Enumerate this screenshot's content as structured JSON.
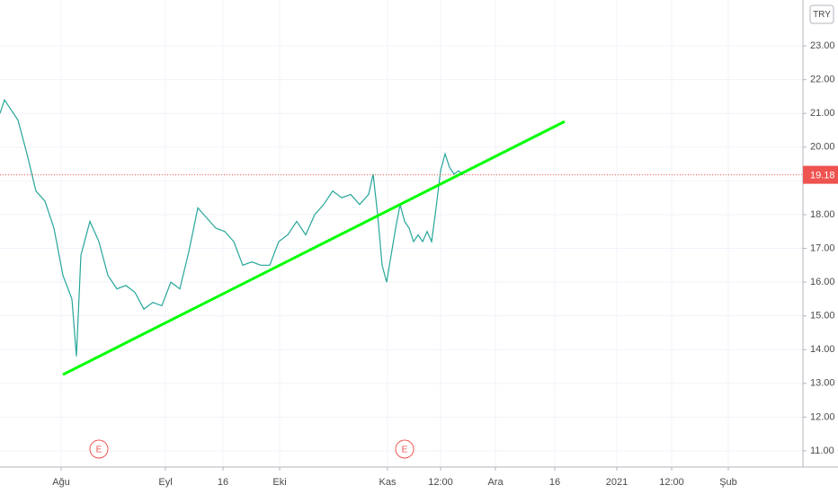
{
  "chart_data": {
    "type": "line",
    "currency": "TRY",
    "x": [
      0,
      1,
      4,
      6,
      8,
      10,
      12,
      14,
      16,
      17,
      18,
      20,
      22,
      24,
      26,
      28,
      30,
      32,
      34,
      36,
      38,
      40,
      42,
      44,
      46,
      48,
      50,
      52,
      54,
      56,
      58,
      60,
      62,
      64,
      66,
      68,
      70,
      72,
      74,
      76,
      78,
      80,
      82,
      83,
      84,
      85,
      86,
      87,
      88,
      89,
      90,
      91,
      92,
      93,
      94,
      95,
      96,
      97,
      98,
      99,
      100,
      101,
      102,
      103
    ],
    "series": [
      {
        "name": "TRY",
        "color": "#26a69a",
        "values": [
          21.0,
          21.4,
          20.8,
          19.8,
          18.7,
          18.4,
          17.6,
          16.2,
          15.5,
          13.8,
          16.8,
          17.8,
          17.2,
          16.2,
          15.8,
          15.9,
          15.7,
          15.2,
          15.4,
          15.3,
          16.0,
          15.8,
          16.9,
          18.2,
          17.9,
          17.6,
          17.5,
          17.2,
          16.5,
          16.6,
          16.5,
          16.5,
          17.2,
          17.4,
          17.8,
          17.4,
          18.0,
          18.3,
          18.7,
          18.5,
          18.6,
          18.3,
          18.6,
          19.2,
          18.0,
          16.5,
          16.0,
          16.8,
          17.6,
          18.3,
          17.8,
          17.6,
          17.2,
          17.4,
          17.2,
          17.5,
          17.2,
          18.2,
          19.3,
          19.8,
          19.4,
          19.2,
          19.3,
          19.18
        ]
      }
    ],
    "trendline": {
      "x": [
        14,
        125.6
      ],
      "values": [
        13.26,
        20.76
      ],
      "color": "#00ff00"
    },
    "last_price": 19.18,
    "events": [
      {
        "x": 22,
        "label": "E"
      },
      {
        "x": 90,
        "label": "E"
      }
    ],
    "xlim": [
      0,
      178.6
    ],
    "ylim": [
      10.52,
      24.36
    ],
    "xticks": [
      {
        "value": 13.6,
        "label": "Ağu"
      },
      {
        "value": 36.8,
        "label": "Eyl"
      },
      {
        "value": 49.6,
        "label": "16"
      },
      {
        "value": 62.2,
        "label": "Eki"
      },
      {
        "value": 86.2,
        "label": "Kas"
      },
      {
        "value": 98,
        "label": "12:00"
      },
      {
        "value": 110.2,
        "label": "Ara"
      },
      {
        "value": 123.4,
        "label": "16"
      },
      {
        "value": 137.2,
        "label": "2021"
      },
      {
        "value": 149.4,
        "label": "12:00"
      },
      {
        "value": 162,
        "label": "Şub"
      }
    ],
    "yticks": [
      {
        "value": 11,
        "label": "11.00"
      },
      {
        "value": 12,
        "label": "12.00"
      },
      {
        "value": 13,
        "label": "13.00"
      },
      {
        "value": 14,
        "label": "14.00"
      },
      {
        "value": 15,
        "label": "15.00"
      },
      {
        "value": 16,
        "label": "16.00"
      },
      {
        "value": 17,
        "label": "17.00"
      },
      {
        "value": 18,
        "label": "18.00"
      },
      {
        "value": 19,
        "label": "19.00"
      },
      {
        "value": 20,
        "label": "20.00"
      },
      {
        "value": 21,
        "label": "21.00"
      },
      {
        "value": 22,
        "label": "22.00"
      },
      {
        "value": 23,
        "label": "23.00"
      }
    ],
    "grid": true
  }
}
